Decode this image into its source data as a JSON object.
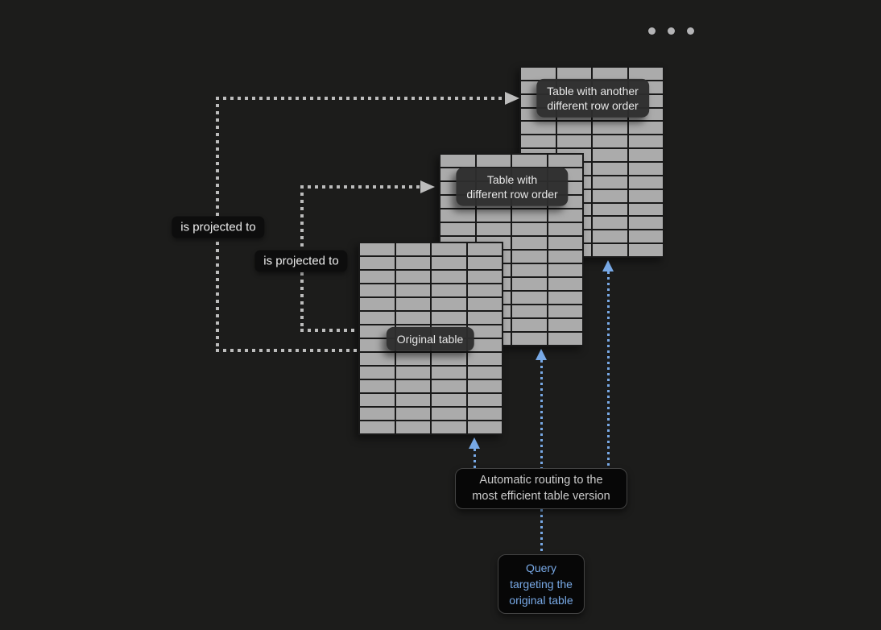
{
  "window": {
    "menu_dots_count": 3
  },
  "colors": {
    "background": "#1c1c1b",
    "table_fill": "#ababab",
    "grid_line": "#191919",
    "dotted_white": "#bcbcbc",
    "accent_blue": "#78a9e6"
  },
  "tables": [
    {
      "name": "original",
      "cols": 4,
      "rows": 14,
      "label": "Original table"
    },
    {
      "name": "different-row-order",
      "cols": 4,
      "rows": 14,
      "label_lines": [
        "Table with",
        "different row order"
      ]
    },
    {
      "name": "another-different-row-order",
      "cols": 4,
      "rows": 14,
      "label_lines": [
        "Table with another",
        "different row order"
      ]
    }
  ],
  "projections": [
    {
      "label": "is projected to"
    },
    {
      "label": "is projected to"
    }
  ],
  "routing": {
    "lines": [
      "Automatic routing to the",
      "most efficient table version"
    ]
  },
  "query": {
    "lines": [
      "Query",
      "targeting the",
      "original table"
    ]
  }
}
